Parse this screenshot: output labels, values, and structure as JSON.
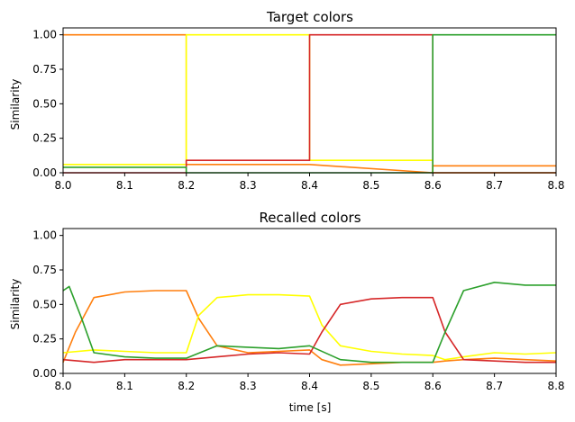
{
  "chart_data": [
    {
      "type": "line",
      "title": "Target colors",
      "xlabel": "",
      "ylabel": "Similarity",
      "xlim": [
        8.0,
        8.8
      ],
      "ylim": [
        0.0,
        1.05
      ],
      "xticks": [
        "8.0",
        "8.1",
        "8.2",
        "8.3",
        "8.4",
        "8.5",
        "8.6",
        "8.7",
        "8.8"
      ],
      "yticks": [
        "0.00",
        "0.25",
        "0.50",
        "0.75",
        "1.00"
      ],
      "grid": false,
      "series": [
        {
          "color": "#ff7f0e",
          "x": [
            8.0,
            8.2,
            8.2,
            8.4,
            8.4,
            8.6,
            8.6,
            8.8
          ],
          "y": [
            1.0,
            1.0,
            0.06,
            0.06,
            0.06,
            0.0,
            0.05,
            0.05
          ]
        },
        {
          "color": "#ffff00",
          "x": [
            8.0,
            8.2,
            8.2,
            8.4,
            8.4,
            8.6,
            8.6,
            8.8
          ],
          "y": [
            0.06,
            0.06,
            1.0,
            1.0,
            0.09,
            0.09,
            0.0,
            0.0
          ]
        },
        {
          "color": "#d62728",
          "x": [
            8.0,
            8.2,
            8.2,
            8.4,
            8.4,
            8.6,
            8.6,
            8.8
          ],
          "y": [
            0.0,
            0.0,
            0.09,
            0.09,
            1.0,
            1.0,
            0.0,
            0.0
          ]
        },
        {
          "color": "#2ca02c",
          "x": [
            8.0,
            8.2,
            8.2,
            8.6,
            8.6,
            8.8
          ],
          "y": [
            0.04,
            0.04,
            0.0,
            0.0,
            1.0,
            1.0
          ]
        }
      ]
    },
    {
      "type": "line",
      "title": "Recalled colors",
      "xlabel": "time [s]",
      "ylabel": "Similarity",
      "xlim": [
        8.0,
        8.8
      ],
      "ylim": [
        0.0,
        1.05
      ],
      "xticks": [
        "8.0",
        "8.1",
        "8.2",
        "8.3",
        "8.4",
        "8.5",
        "8.6",
        "8.7",
        "8.8"
      ],
      "yticks": [
        "0.00",
        "0.25",
        "0.50",
        "0.75",
        "1.00"
      ],
      "grid": false,
      "series": [
        {
          "color": "#ff7f0e",
          "x": [
            8.0,
            8.02,
            8.05,
            8.1,
            8.15,
            8.2,
            8.22,
            8.25,
            8.3,
            8.35,
            8.4,
            8.42,
            8.45,
            8.5,
            8.55,
            8.6,
            8.62,
            8.65,
            8.7,
            8.75,
            8.8
          ],
          "y": [
            0.08,
            0.3,
            0.55,
            0.59,
            0.6,
            0.6,
            0.4,
            0.2,
            0.15,
            0.16,
            0.17,
            0.1,
            0.06,
            0.07,
            0.08,
            0.08,
            0.09,
            0.1,
            0.11,
            0.1,
            0.09
          ]
        },
        {
          "color": "#ffff00",
          "x": [
            8.0,
            8.05,
            8.1,
            8.15,
            8.2,
            8.22,
            8.25,
            8.3,
            8.35,
            8.4,
            8.42,
            8.45,
            8.5,
            8.55,
            8.6,
            8.62,
            8.65,
            8.7,
            8.75,
            8.8
          ],
          "y": [
            0.15,
            0.17,
            0.16,
            0.15,
            0.15,
            0.42,
            0.55,
            0.57,
            0.57,
            0.56,
            0.35,
            0.2,
            0.16,
            0.14,
            0.13,
            0.1,
            0.12,
            0.15,
            0.14,
            0.15
          ]
        },
        {
          "color": "#d62728",
          "x": [
            8.0,
            8.05,
            8.1,
            8.15,
            8.2,
            8.25,
            8.3,
            8.35,
            8.4,
            8.42,
            8.45,
            8.5,
            8.55,
            8.6,
            8.62,
            8.65,
            8.7,
            8.75,
            8.8
          ],
          "y": [
            0.1,
            0.08,
            0.1,
            0.1,
            0.1,
            0.12,
            0.14,
            0.15,
            0.14,
            0.3,
            0.5,
            0.54,
            0.55,
            0.55,
            0.3,
            0.1,
            0.09,
            0.08,
            0.08
          ]
        },
        {
          "color": "#2ca02c",
          "x": [
            8.0,
            8.01,
            8.03,
            8.05,
            8.1,
            8.15,
            8.2,
            8.25,
            8.3,
            8.35,
            8.4,
            8.45,
            8.5,
            8.55,
            8.6,
            8.62,
            8.65,
            8.7,
            8.75,
            8.8
          ],
          "y": [
            0.6,
            0.63,
            0.4,
            0.15,
            0.12,
            0.11,
            0.11,
            0.2,
            0.19,
            0.18,
            0.2,
            0.1,
            0.08,
            0.08,
            0.08,
            0.3,
            0.6,
            0.66,
            0.64,
            0.64
          ]
        }
      ]
    }
  ]
}
